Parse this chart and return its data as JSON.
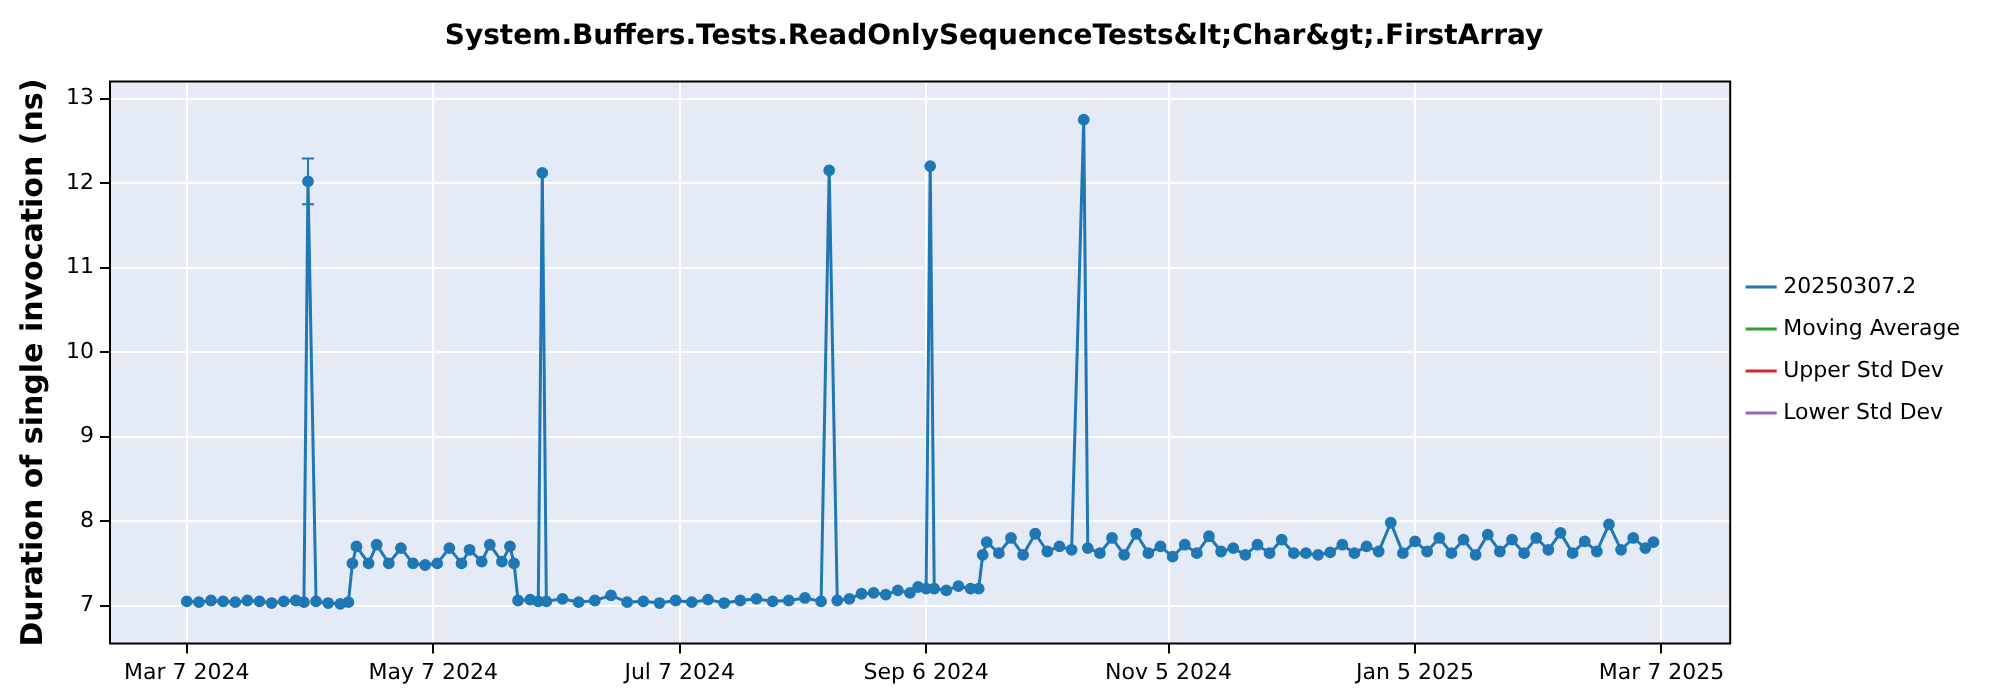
{
  "chart_data": {
    "type": "line",
    "title": "System.Buffers.Tests.ReadOnlySequenceTests&lt;Char&gt;.FirstArray",
    "ylabel": "Duration of single invocation (ns)",
    "xlim": [
      "2024-02-17",
      "2025-03-24"
    ],
    "xticks": [
      {
        "value": "2024-03-07",
        "label": "Mar 7 2024"
      },
      {
        "value": "2024-05-07",
        "label": "May 7 2024"
      },
      {
        "value": "2024-07-07",
        "label": "Jul 7 2024"
      },
      {
        "value": "2024-09-06",
        "label": "Sep 6 2024"
      },
      {
        "value": "2024-11-05",
        "label": "Nov 5 2024"
      },
      {
        "value": "2025-01-05",
        "label": "Jan 5 2025"
      },
      {
        "value": "2025-03-07",
        "label": "Mar 7 2025"
      }
    ],
    "ylim": [
      6.55,
      13.2
    ],
    "yticks": [
      7,
      8,
      9,
      10,
      11,
      12,
      13
    ],
    "grid": true,
    "legend": "right",
    "marker": "circle",
    "series": [
      {
        "name": "20250307.2",
        "color": "#1f77b4",
        "x": [
          "2024-03-07",
          "2024-03-10",
          "2024-03-13",
          "2024-03-16",
          "2024-03-19",
          "2024-03-22",
          "2024-03-25",
          "2024-03-28",
          "2024-03-31",
          "2024-04-03",
          "2024-04-05",
          "2024-04-06",
          "2024-04-08",
          "2024-04-11",
          "2024-04-14",
          "2024-04-16",
          "2024-04-17",
          "2024-04-18",
          "2024-04-21",
          "2024-04-23",
          "2024-04-26",
          "2024-04-29",
          "2024-05-02",
          "2024-05-05",
          "2024-05-08",
          "2024-05-11",
          "2024-05-14",
          "2024-05-16",
          "2024-05-19",
          "2024-05-21",
          "2024-05-24",
          "2024-05-26",
          "2024-05-27",
          "2024-05-28",
          "2024-05-31",
          "2024-06-02",
          "2024-06-03",
          "2024-06-04",
          "2024-06-08",
          "2024-06-12",
          "2024-06-16",
          "2024-06-20",
          "2024-06-24",
          "2024-06-28",
          "2024-07-02",
          "2024-07-06",
          "2024-07-10",
          "2024-07-14",
          "2024-07-18",
          "2024-07-22",
          "2024-07-26",
          "2024-07-30",
          "2024-08-03",
          "2024-08-07",
          "2024-08-11",
          "2024-08-13",
          "2024-08-15",
          "2024-08-18",
          "2024-08-21",
          "2024-08-24",
          "2024-08-27",
          "2024-08-30",
          "2024-09-02",
          "2024-09-04",
          "2024-09-06",
          "2024-09-07",
          "2024-09-08",
          "2024-09-11",
          "2024-09-14",
          "2024-09-17",
          "2024-09-19",
          "2024-09-20",
          "2024-09-21",
          "2024-09-24",
          "2024-09-27",
          "2024-09-30",
          "2024-10-03",
          "2024-10-06",
          "2024-10-09",
          "2024-10-12",
          "2024-10-15",
          "2024-10-16",
          "2024-10-19",
          "2024-10-22",
          "2024-10-25",
          "2024-10-28",
          "2024-10-31",
          "2024-11-03",
          "2024-11-06",
          "2024-11-09",
          "2024-11-12",
          "2024-11-15",
          "2024-11-18",
          "2024-11-21",
          "2024-11-24",
          "2024-11-27",
          "2024-11-30",
          "2024-12-03",
          "2024-12-06",
          "2024-12-09",
          "2024-12-12",
          "2024-12-15",
          "2024-12-18",
          "2024-12-21",
          "2024-12-24",
          "2024-12-27",
          "2024-12-30",
          "2025-01-02",
          "2025-01-05",
          "2025-01-08",
          "2025-01-11",
          "2025-01-14",
          "2025-01-17",
          "2025-01-20",
          "2025-01-23",
          "2025-01-26",
          "2025-01-29",
          "2025-02-01",
          "2025-02-04",
          "2025-02-07",
          "2025-02-10",
          "2025-02-13",
          "2025-02-16",
          "2025-02-19",
          "2025-02-22",
          "2025-02-25",
          "2025-02-28",
          "2025-03-03",
          "2025-03-05"
        ],
        "values": [
          7.05,
          7.04,
          7.06,
          7.05,
          7.04,
          7.06,
          7.05,
          7.03,
          7.05,
          7.06,
          7.04,
          12.02,
          7.05,
          7.03,
          7.02,
          7.04,
          7.5,
          7.7,
          7.5,
          7.72,
          7.5,
          7.68,
          7.5,
          7.48,
          7.5,
          7.68,
          7.5,
          7.66,
          7.52,
          7.72,
          7.52,
          7.7,
          7.5,
          7.06,
          7.07,
          7.05,
          12.12,
          7.05,
          7.08,
          7.04,
          7.06,
          7.12,
          7.04,
          7.05,
          7.03,
          7.06,
          7.04,
          7.07,
          7.03,
          7.06,
          7.08,
          7.05,
          7.06,
          7.09,
          7.05,
          12.15,
          7.06,
          7.08,
          7.14,
          7.15,
          7.13,
          7.18,
          7.15,
          7.22,
          7.2,
          12.2,
          7.2,
          7.18,
          7.23,
          7.2,
          7.2,
          7.6,
          7.75,
          7.62,
          7.8,
          7.6,
          7.85,
          7.64,
          7.7,
          7.66,
          12.75,
          7.68,
          7.62,
          7.8,
          7.6,
          7.85,
          7.62,
          7.7,
          7.58,
          7.72,
          7.62,
          7.82,
          7.64,
          7.68,
          7.6,
          7.72,
          7.62,
          7.78,
          7.62,
          7.62,
          7.6,
          7.63,
          7.72,
          7.62,
          7.7,
          7.64,
          7.98,
          7.62,
          7.76,
          7.64,
          7.8,
          7.62,
          7.78,
          7.6,
          7.84,
          7.64,
          7.78,
          7.62,
          7.8,
          7.66,
          7.86,
          7.62,
          7.76,
          7.64,
          7.96,
          7.66,
          7.8,
          7.68,
          7.75
        ],
        "errors": [
          null,
          null,
          null,
          null,
          null,
          null,
          null,
          null,
          null,
          null,
          null,
          0.27,
          null,
          null,
          null,
          null,
          null,
          null,
          null,
          null,
          null,
          null,
          null,
          null,
          null,
          null,
          null,
          null,
          null,
          null,
          null,
          null,
          null,
          null,
          null,
          null,
          null,
          null,
          null,
          null,
          null,
          null,
          null,
          null,
          null,
          null,
          null,
          null,
          null,
          null,
          null,
          null,
          null,
          null,
          null,
          null,
          null,
          null,
          null,
          null,
          null,
          null,
          null,
          null,
          null,
          null,
          null,
          null,
          null,
          null,
          null,
          null,
          null,
          null,
          null,
          null,
          null,
          null,
          null,
          null,
          null,
          null,
          null,
          null,
          null,
          null,
          null,
          null,
          null,
          null,
          null,
          null,
          null,
          null,
          null,
          null,
          null,
          null,
          null,
          null,
          null,
          null,
          null,
          null,
          null,
          null,
          null,
          null,
          null,
          null,
          null,
          null,
          null,
          null,
          null,
          null,
          null,
          null,
          null,
          null,
          null,
          null,
          null,
          null,
          null,
          null,
          null,
          null,
          null
        ]
      },
      {
        "name": "Moving Average",
        "color": "#2ca02c"
      },
      {
        "name": "Upper Std Dev",
        "color": "#d62728"
      },
      {
        "name": "Lower Std Dev",
        "color": "#9467bd"
      }
    ]
  }
}
